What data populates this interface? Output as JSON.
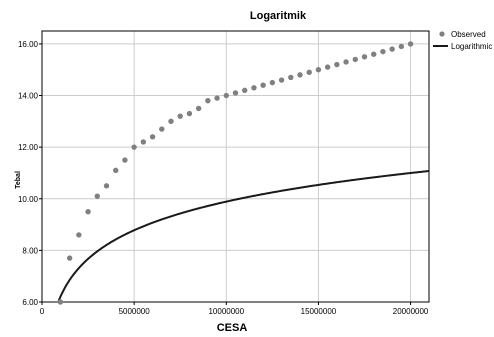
{
  "chart_data": {
    "type": "scatter",
    "title": "Logaritmik",
    "xlabel": "CESA",
    "ylabel": "Tebal",
    "xlim": [
      0,
      21000000
    ],
    "ylim": [
      6.0,
      16.5
    ],
    "x_ticks": [
      0,
      5000000,
      10000000,
      15000000,
      20000000
    ],
    "x_tick_labels": [
      "0",
      "5000000",
      "10000000",
      "15000000",
      "20000000"
    ],
    "y_ticks": [
      6.0,
      8.0,
      10.0,
      12.0,
      14.0,
      16.0
    ],
    "y_tick_labels": [
      "6.00",
      "8.00",
      "10.00",
      "12.00",
      "14.00",
      "16.00"
    ],
    "grid": true,
    "legend_position": "right",
    "series": [
      {
        "name": "Observed",
        "kind": "points",
        "color": "#808080",
        "x": [
          1000000,
          1500000,
          2000000,
          2500000,
          3000000,
          3500000,
          4000000,
          4500000,
          5000000,
          5500000,
          6000000,
          6500000,
          7000000,
          7500000,
          8000000,
          8500000,
          9000000,
          9500000,
          10000000,
          10500000,
          11000000,
          11500000,
          12000000,
          12500000,
          13000000,
          13500000,
          14000000,
          14500000,
          15000000,
          15500000,
          16000000,
          16500000,
          17000000,
          17500000,
          18000000,
          18500000,
          19000000,
          19500000,
          20000000
        ],
        "y": [
          6.0,
          7.7,
          8.6,
          9.5,
          10.1,
          10.5,
          11.1,
          11.5,
          12.0,
          12.2,
          12.4,
          12.7,
          13.0,
          13.2,
          13.3,
          13.5,
          13.8,
          13.9,
          14.0,
          14.1,
          14.2,
          14.3,
          14.4,
          14.5,
          14.6,
          14.7,
          14.8,
          14.9,
          15.0,
          15.1,
          15.2,
          15.3,
          15.4,
          15.5,
          15.6,
          15.7,
          15.8,
          15.9,
          16.0
        ]
      },
      {
        "name": "Logarithmic",
        "kind": "curve",
        "color": "#1a1a1a",
        "equation": {
          "a": -15.9,
          "b": 1.6,
          "form": "y = a + b*ln(x)"
        },
        "x_range": [
          900000,
          21000000
        ]
      }
    ]
  }
}
